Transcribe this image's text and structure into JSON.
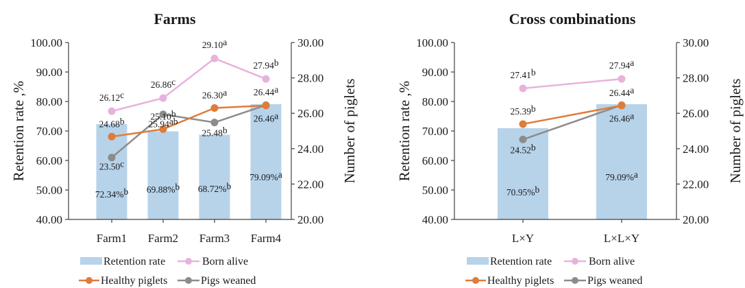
{
  "colors": {
    "retention": "#b7d3ea",
    "born_alive": "#e8b2dd",
    "healthy": "#e07b39",
    "weaned": "#8c8c8c",
    "axis": "#404040"
  },
  "legend": {
    "retention": "Retention rate",
    "born_alive": "Born alive",
    "healthy": "Healthy piglets",
    "weaned": "Pigs weaned"
  },
  "chart_data": [
    {
      "type": "bar",
      "title": "Farms",
      "ylabel": "Retention rate ,%",
      "y2label": "Number of piglets",
      "ylim": [
        40,
        100
      ],
      "y2lim": [
        20,
        30
      ],
      "yticks": [
        "40.00",
        "50.00",
        "60.00",
        "70.00",
        "80.00",
        "90.00",
        "100.00"
      ],
      "y2ticks": [
        "20.00",
        "22.00",
        "24.00",
        "26.00",
        "28.00",
        "30.00"
      ],
      "categories": [
        "Farm1",
        "Farm2",
        "Farm3",
        "Farm4"
      ],
      "series": [
        {
          "name": "Retention rate",
          "kind": "bar",
          "axis": "left",
          "values": [
            72.34,
            69.88,
            68.72,
            79.09
          ],
          "labels": [
            "72.34%",
            "69.88%",
            "68.72%",
            "79.09%"
          ],
          "letters": [
            "b",
            "b",
            "b",
            "a"
          ]
        },
        {
          "name": "Born alive",
          "kind": "line",
          "axis": "right",
          "values": [
            26.12,
            26.86,
            29.1,
            27.94
          ],
          "labels": [
            "26.12",
            "26.86",
            "29.10",
            "27.94"
          ],
          "letters": [
            "c",
            "c",
            "a",
            "b"
          ]
        },
        {
          "name": "Healthy piglets",
          "kind": "line",
          "axis": "right",
          "values": [
            24.68,
            25.1,
            26.3,
            26.44
          ],
          "labels": [
            "24.68",
            "25.10",
            "26.30",
            "26.44"
          ],
          "letters": [
            "b",
            "b",
            "a",
            "a"
          ]
        },
        {
          "name": "Pigs weaned",
          "kind": "line",
          "axis": "right",
          "values": [
            23.5,
            25.94,
            25.48,
            26.46
          ],
          "labels": [
            "23.50",
            "25.94",
            "25.48",
            "26.46"
          ],
          "letters": [
            "c",
            "ab",
            "b",
            "a"
          ]
        }
      ]
    },
    {
      "type": "bar",
      "title": "Cross combinations",
      "ylabel": "Retention rate ,%",
      "y2label": "Number of piglets",
      "ylim": [
        40,
        100
      ],
      "y2lim": [
        20,
        30
      ],
      "yticks": [
        "40.00",
        "50.00",
        "60.00",
        "70.00",
        "80.00",
        "90.00",
        "100.00"
      ],
      "y2ticks": [
        "20.00",
        "22.00",
        "24.00",
        "26.00",
        "28.00",
        "30.00"
      ],
      "categories": [
        "L×Y",
        "L×L×Y"
      ],
      "series": [
        {
          "name": "Retention rate",
          "kind": "bar",
          "axis": "left",
          "values": [
            70.95,
            79.09
          ],
          "labels": [
            "70.95%",
            "79.09%"
          ],
          "letters": [
            "b",
            "a"
          ]
        },
        {
          "name": "Born alive",
          "kind": "line",
          "axis": "right",
          "values": [
            27.41,
            27.94
          ],
          "labels": [
            "27.41",
            "27.94"
          ],
          "letters": [
            "b",
            "a"
          ]
        },
        {
          "name": "Healthy piglets",
          "kind": "line",
          "axis": "right",
          "values": [
            25.39,
            26.44
          ],
          "labels": [
            "25.39",
            "26.44"
          ],
          "letters": [
            "b",
            "a"
          ]
        },
        {
          "name": "Pigs weaned",
          "kind": "line",
          "axis": "right",
          "values": [
            24.52,
            26.46
          ],
          "labels": [
            "24.52",
            "26.46"
          ],
          "letters": [
            "b",
            "a"
          ]
        }
      ]
    }
  ]
}
